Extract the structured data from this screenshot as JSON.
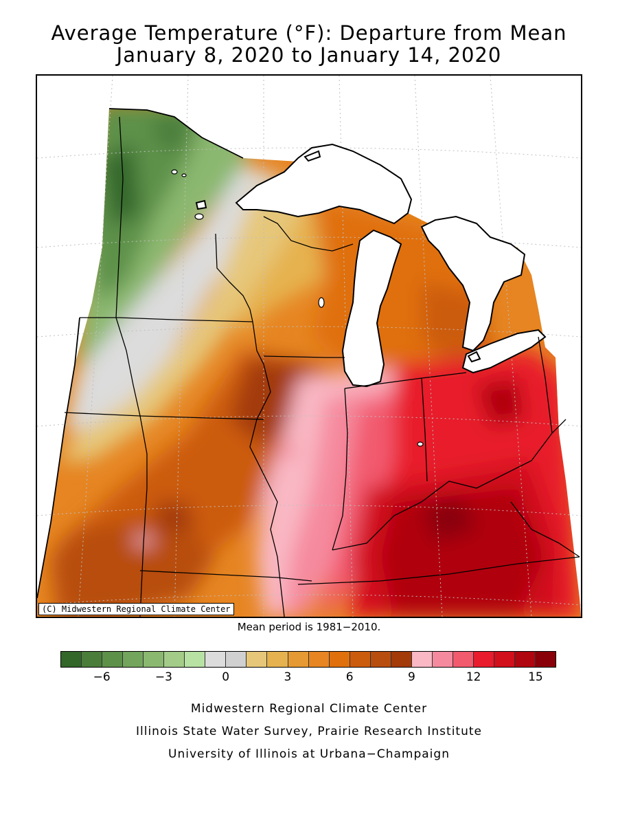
{
  "title": {
    "line1": "Average Temperature (°F): Departure from Mean",
    "line2": "January 8, 2020 to January 14, 2020"
  },
  "map": {
    "copyright": "(C) Midwestern Regional Climate Center",
    "region": "Midwest (Minnesota, Iowa, Missouri, Wisconsin, Illinois, Michigan, Indiana, Ohio, Kentucky)",
    "pattern": [
      {
        "area": "northwest Minnesota",
        "departure_range_f": [
          -7,
          -3
        ],
        "color": "#5b9248"
      },
      {
        "area": "north-central Minnesota / upper Wisconsin",
        "departure_range_f": [
          -2,
          1
        ],
        "color": "#d9d9d9"
      },
      {
        "area": "Iowa / southern Minnesota / Wisconsin / Michigan",
        "departure_range_f": [
          2,
          8
        ],
        "color": "#e68a1a"
      },
      {
        "area": "Missouri",
        "departure_range_f": [
          5,
          9
        ],
        "color": "#c4620e"
      },
      {
        "area": "Indiana / Ohio / Kentucky",
        "departure_range_f": [
          11,
          15
        ],
        "color": "#e8141c"
      }
    ]
  },
  "mean_period": "Mean period is 1981−2010.",
  "legend": {
    "colors": [
      "#336629",
      "#4a7d3a",
      "#5d9149",
      "#73a65c",
      "#8bb870",
      "#a3cc88",
      "#b8e2a3",
      "#dcdcdc",
      "#d0d0d0",
      "#e6c77a",
      "#e6b24f",
      "#e69a33",
      "#e68522",
      "#e0700c",
      "#cc5c0d",
      "#b84d10",
      "#a33a0a",
      "#f9b8c4",
      "#f58a9e",
      "#f25a6e",
      "#e81c2c",
      "#d1101c",
      "#b0060f",
      "#8a0008"
    ],
    "ticks": [
      "−6",
      "−3",
      "0",
      "3",
      "6",
      "9",
      "12",
      "15"
    ]
  },
  "credits": {
    "line1": "Midwestern Regional Climate Center",
    "line2": "Illinois State Water Survey, Prairie Research Institute",
    "line3": "University of Illinois at Urbana−Champaign"
  }
}
